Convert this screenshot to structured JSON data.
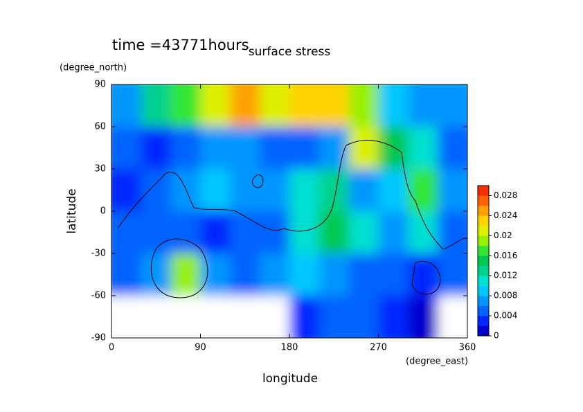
{
  "chart_data": {
    "type": "heatmap",
    "title": "surface stress",
    "subtitle": "time =43771hours",
    "x_label": "longitude",
    "y_label": "latitude",
    "x_unit": "(degree_east)",
    "y_unit": "(degree_north)",
    "x": [
      15,
      45,
      75,
      105,
      135,
      165,
      195,
      225,
      255,
      285,
      315,
      345
    ],
    "y": [
      75,
      45,
      15,
      -15,
      -45,
      -75
    ],
    "values": [
      [
        0.006,
        0.012,
        0.016,
        0.02,
        0.024,
        0.02,
        0.022,
        0.022,
        0.018,
        0.008,
        0.006,
        0.006
      ],
      [
        0.004,
        0.002,
        0.004,
        0.006,
        0.006,
        0.004,
        0.004,
        0.006,
        0.02,
        0.014,
        0.01,
        0.004
      ],
      [
        0.002,
        0.004,
        0.006,
        0.008,
        0.006,
        0.006,
        0.01,
        0.012,
        0.006,
        0.008,
        0.016,
        0.006
      ],
      [
        0.004,
        0.004,
        0.004,
        0.002,
        0.004,
        0.004,
        0.01,
        0.014,
        0.01,
        0.006,
        0.01,
        0.004
      ],
      [
        0.004,
        0.006,
        0.018,
        0.006,
        0.004,
        0.006,
        0.008,
        0.006,
        0.004,
        0.004,
        0.002,
        0.004
      ],
      [
        0,
        0,
        0,
        0,
        0,
        0,
        0.002,
        0.004,
        0.004,
        0.002,
        0.001,
        0
      ]
    ],
    "xlim": [
      0,
      360
    ],
    "ylim": [
      -90,
      90
    ],
    "xticks": [
      0,
      90,
      180,
      270,
      360
    ],
    "yticks": [
      -90,
      -60,
      -30,
      0,
      30,
      60,
      90
    ],
    "colorbar": {
      "levels": [
        0,
        0.002,
        0.004,
        0.006,
        0.008,
        0.01,
        0.012,
        0.014,
        0.016,
        0.018,
        0.02,
        0.022,
        0.024,
        0.026,
        0.028,
        0.03
      ],
      "colors": [
        "#0000cd",
        "#0028ff",
        "#0064ff",
        "#0096ff",
        "#00c8ff",
        "#00e0d0",
        "#00d28c",
        "#00c850",
        "#32e632",
        "#96f000",
        "#dcf000",
        "#ffd200",
        "#ffa000",
        "#ff6400",
        "#f03200"
      ],
      "ticks": [
        0,
        0.004,
        0.008,
        0.012,
        0.016,
        0.02,
        0.024,
        0.028
      ]
    }
  }
}
